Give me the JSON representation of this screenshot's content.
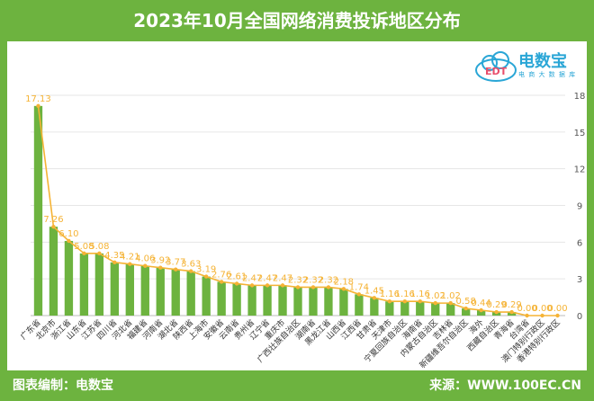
{
  "header": {
    "title": "2023年10月全国网络消费投诉地区分布"
  },
  "footer": {
    "editor": "图表编制：电数宝",
    "source": "来源：WWW.100EC.CN"
  },
  "logo": {
    "name": "电数宝",
    "sub": "电 商 大 数 据 库",
    "mark": "EDT"
  },
  "colors": {
    "frame": "#6db33f",
    "bar": "#6db33f",
    "line": "#f5b335",
    "label": "#f5b335"
  },
  "chart_data": {
    "type": "bar",
    "categories": [
      "广东省",
      "北京市",
      "浙江省",
      "山东省",
      "江苏省",
      "四川省",
      "河北省",
      "福建省",
      "河南省",
      "湖北省",
      "陕西省",
      "上海市",
      "安徽省",
      "云南省",
      "贵州省",
      "辽宁省",
      "重庆市",
      "广西壮族自治区",
      "湖南省",
      "黑龙江省",
      "山西省",
      "江西省",
      "甘肃省",
      "天津市",
      "宁夏回族自治区",
      "海南省",
      "内蒙古自治区",
      "吉林省",
      "新疆维吾尔自治区",
      "海外",
      "西藏自治区",
      "青海省",
      "台湾省",
      "澳门特别行政区",
      "香港特别行政区"
    ],
    "values": [
      17.13,
      7.26,
      6.1,
      5.08,
      5.08,
      4.35,
      4.21,
      4.06,
      3.92,
      3.77,
      3.63,
      3.19,
      2.76,
      2.61,
      2.47,
      2.47,
      2.47,
      2.32,
      2.32,
      2.32,
      2.18,
      1.74,
      1.45,
      1.16,
      1.16,
      1.16,
      1.02,
      1.02,
      0.58,
      0.44,
      0.29,
      0.29,
      0.0,
      0.0,
      0.0
    ],
    "value_labels": [
      "17.13",
      "7.26",
      "6.10",
      "5.08",
      "5.08",
      "4.35",
      "4.21",
      "4.06",
      "3.92",
      "3.77",
      "3.63",
      "3.19",
      "2.76",
      "2.61",
      "2.47",
      "2.47",
      "2.47",
      "2.32",
      "2.32",
      "2.32",
      "2.18",
      "1.74",
      "1.45",
      "1.16",
      "1.16",
      "1.16",
      "1.02",
      "1.02",
      "0.58",
      "0.44",
      "0.29",
      "0.29",
      "0.00",
      "0.00",
      "0.00"
    ],
    "yticks": [
      0,
      3,
      6,
      9,
      12,
      15,
      18
    ],
    "ylim": [
      0,
      18
    ],
    "series": [
      {
        "values": [
          17.13,
          7.26,
          6.1,
          5.08,
          5.08,
          4.35,
          4.21,
          4.06,
          3.92,
          3.77,
          3.63,
          3.19,
          2.76,
          2.61,
          2.47,
          2.47,
          2.47,
          2.32,
          2.32,
          2.32,
          2.18,
          1.74,
          1.45,
          1.16,
          1.16,
          1.16,
          1.02,
          1.02,
          0.58,
          0.44,
          0.29,
          0.29,
          0.0,
          0.0,
          0.0
        ]
      }
    ],
    "grid": true
  }
}
